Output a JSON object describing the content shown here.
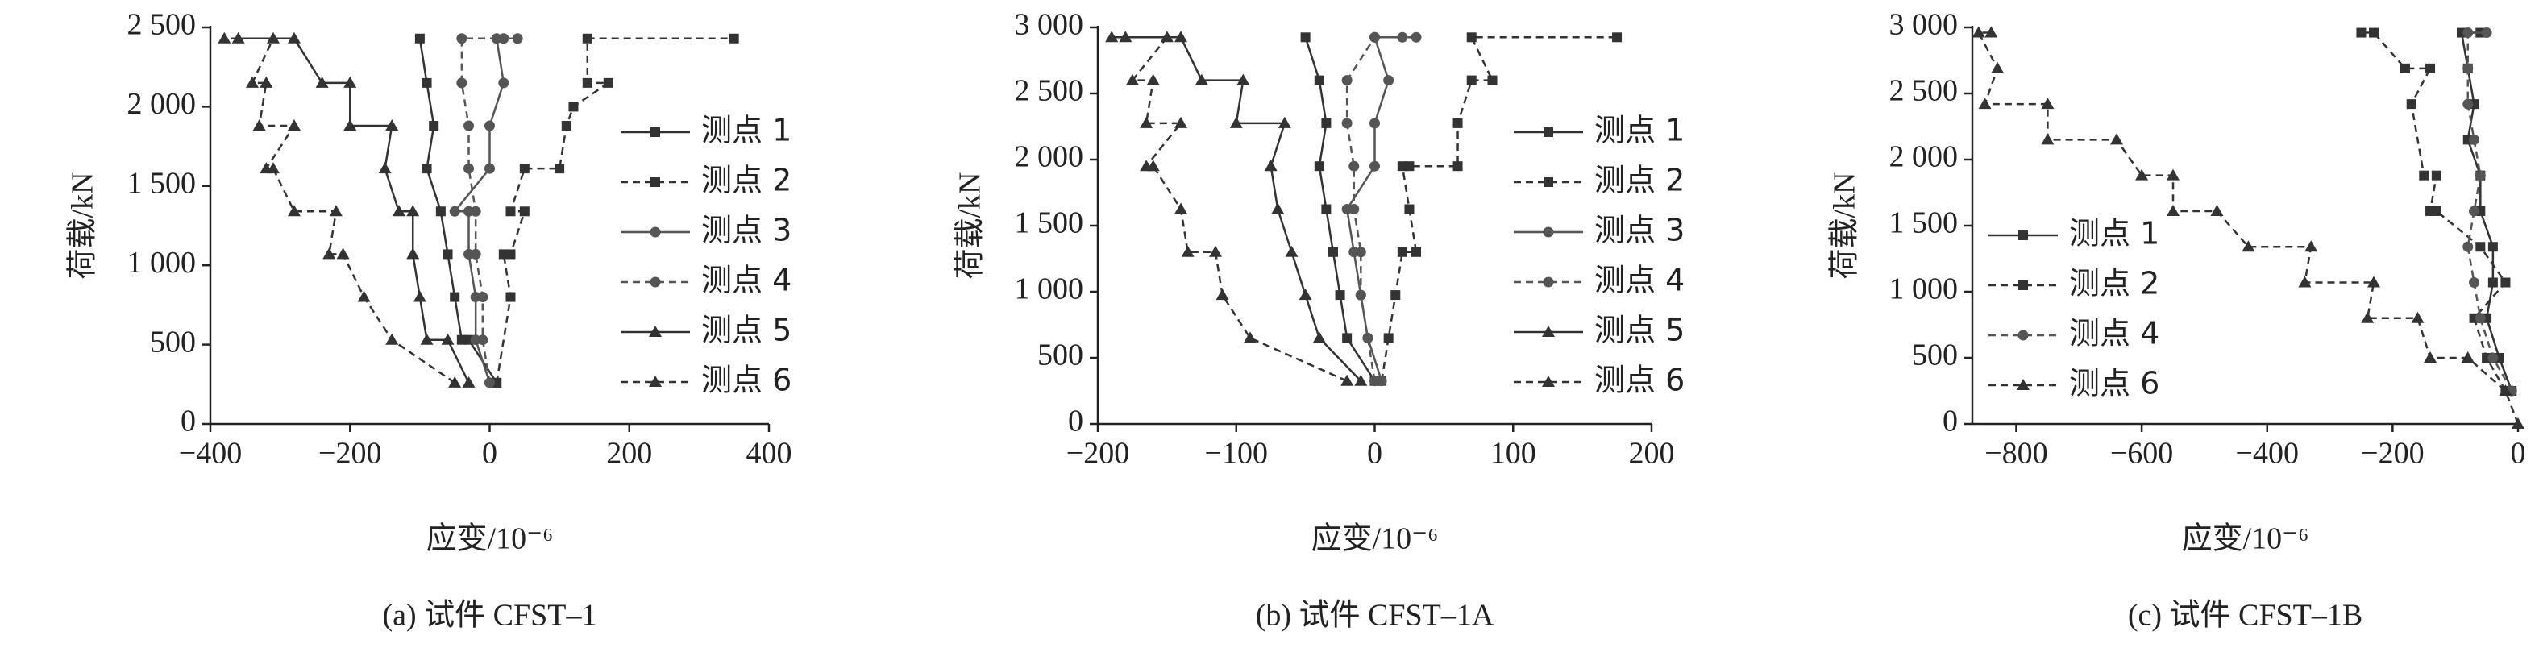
{
  "chart_data": [
    {
      "type": "line",
      "caption": "(a) 试件 CFST–1",
      "xlabel": "应变/10⁻⁶",
      "ylabel": "荷载/kN",
      "xlim": [
        -400,
        400
      ],
      "ylim": [
        0,
        2500
      ],
      "xticks": [
        {
          "value": -400,
          "label": "−400"
        },
        {
          "value": -200,
          "label": "−200"
        },
        0,
        200,
        400
      ],
      "yticks": [
        0,
        500,
        {
          "value": 1000,
          "label": "1 000"
        },
        {
          "value": 1500,
          "label": "1 500"
        },
        {
          "value": 2000,
          "label": "2 000"
        },
        {
          "value": 2500,
          "label": "2 500"
        }
      ],
      "series": [
        {
          "name": "测点 1",
          "color": "#333333",
          "dash": false,
          "marker": "square",
          "x": [
            10,
            -30,
            -40,
            -50,
            -60,
            -70,
            -90,
            -80,
            -90,
            -100
          ],
          "y": [
            260,
            530,
            530,
            800,
            1070,
            1340,
            1610,
            1880,
            2150,
            2430
          ]
        },
        {
          "name": "测点 2",
          "color": "#333333",
          "dash": true,
          "marker": "square",
          "x": [
            10,
            30,
            20,
            30,
            50,
            30,
            50,
            100,
            110,
            120,
            170,
            140,
            140,
            350
          ],
          "y": [
            260,
            800,
            1070,
            1070,
            1340,
            1340,
            1610,
            1610,
            1880,
            2000,
            2150,
            2150,
            2430,
            2430
          ]
        },
        {
          "name": "测点 3",
          "color": "#555555",
          "dash": false,
          "marker": "circle",
          "x": [
            0,
            -20,
            -20,
            -30,
            -30,
            -50,
            0,
            0,
            20,
            10,
            40
          ],
          "y": [
            260,
            530,
            800,
            1070,
            1340,
            1340,
            1610,
            1880,
            2150,
            2430,
            2430
          ]
        },
        {
          "name": "测点 4",
          "color": "#555555",
          "dash": true,
          "marker": "circle",
          "x": [
            0,
            -10,
            -10,
            -20,
            -20,
            -30,
            -30,
            -40,
            -40,
            20
          ],
          "y": [
            260,
            530,
            800,
            1070,
            1340,
            1610,
            1880,
            2150,
            2430,
            2430
          ]
        },
        {
          "name": "测点 5",
          "color": "#333333",
          "dash": false,
          "marker": "triangle",
          "x": [
            -30,
            -60,
            -90,
            -100,
            -110,
            -110,
            -130,
            -150,
            -140,
            -200,
            -200,
            -240,
            -280,
            -360
          ],
          "y": [
            260,
            530,
            530,
            800,
            1070,
            1340,
            1340,
            1610,
            1880,
            1880,
            2150,
            2150,
            2430,
            2430
          ]
        },
        {
          "name": "测点 6",
          "color": "#333333",
          "dash": true,
          "marker": "triangle",
          "x": [
            -50,
            -140,
            -180,
            -210,
            -230,
            -220,
            -280,
            -310,
            -320,
            -280,
            -330,
            -320,
            -340,
            -310,
            -380
          ],
          "y": [
            260,
            530,
            800,
            1070,
            1070,
            1340,
            1340,
            1610,
            1610,
            1880,
            1880,
            2150,
            2150,
            2430,
            2430
          ]
        }
      ]
    },
    {
      "type": "line",
      "caption": "(b) 试件 CFST–1A",
      "xlabel": "应变/10⁻⁶",
      "ylabel": "荷载/kN",
      "xlim": [
        -200,
        200
      ],
      "ylim": [
        0,
        3000
      ],
      "xticks": [
        {
          "value": -200,
          "label": "−200"
        },
        {
          "value": -100,
          "label": "−100"
        },
        0,
        100,
        200
      ],
      "yticks": [
        0,
        500,
        {
          "value": 1000,
          "label": "1 000"
        },
        {
          "value": 1500,
          "label": "1 500"
        },
        {
          "value": 2000,
          "label": "2 000"
        },
        {
          "value": 2500,
          "label": "2 500"
        },
        {
          "value": 3000,
          "label": "3 000"
        }
      ],
      "series": [
        {
          "name": "测点 1",
          "color": "#333333",
          "dash": false,
          "marker": "square",
          "x": [
            0,
            -20,
            -25,
            -30,
            -35,
            -40,
            -35,
            -40,
            -50
          ],
          "y": [
            325,
            650,
            975,
            1300,
            1625,
            1950,
            2275,
            2600,
            2925
          ]
        },
        {
          "name": "测点 2",
          "color": "#333333",
          "dash": true,
          "marker": "square",
          "x": [
            5,
            10,
            15,
            20,
            30,
            25,
            20,
            25,
            60,
            60,
            70,
            85,
            70,
            175
          ],
          "y": [
            325,
            650,
            975,
            1300,
            1300,
            1625,
            1950,
            1950,
            1950,
            2275,
            2600,
            2600,
            2925,
            2925
          ]
        },
        {
          "name": "测点 3",
          "color": "#555555",
          "dash": false,
          "marker": "circle",
          "x": [
            5,
            -5,
            -10,
            -15,
            -20,
            0,
            0,
            10,
            0,
            20
          ],
          "y": [
            325,
            650,
            975,
            1300,
            1625,
            1950,
            2275,
            2600,
            2925,
            2925
          ]
        },
        {
          "name": "测点 4",
          "color": "#555555",
          "dash": true,
          "marker": "circle",
          "x": [
            0,
            -5,
            -10,
            -10,
            -15,
            -15,
            -20,
            -20,
            0,
            30
          ],
          "y": [
            325,
            650,
            975,
            1300,
            1625,
            1950,
            2275,
            2600,
            2925,
            2925
          ]
        },
        {
          "name": "测点 5",
          "color": "#333333",
          "dash": false,
          "marker": "triangle",
          "x": [
            -10,
            -40,
            -50,
            -60,
            -70,
            -75,
            -65,
            -100,
            -95,
            -125,
            -140,
            -190
          ],
          "y": [
            325,
            650,
            975,
            1300,
            1625,
            1950,
            2275,
            2275,
            2600,
            2600,
            2925,
            2925
          ]
        },
        {
          "name": "测点 6",
          "color": "#333333",
          "dash": true,
          "marker": "triangle",
          "x": [
            -20,
            -90,
            -110,
            -115,
            -135,
            -140,
            -160,
            -165,
            -140,
            -165,
            -160,
            -175,
            -150,
            -180
          ],
          "y": [
            325,
            650,
            975,
            1300,
            1300,
            1625,
            1950,
            1950,
            2275,
            2275,
            2600,
            2600,
            2925,
            2925
          ]
        }
      ]
    },
    {
      "type": "line",
      "caption": "(c) 试件 CFST–1B",
      "xlabel": "应变/10⁻⁶",
      "ylabel": "荷载/kN",
      "xlim": [
        -870,
        0
      ],
      "ylim": [
        0,
        3000
      ],
      "xticks": [
        {
          "value": -800,
          "label": "−800"
        },
        {
          "value": -600,
          "label": "−600"
        },
        {
          "value": -400,
          "label": "−400"
        },
        {
          "value": -200,
          "label": "−200"
        },
        0
      ],
      "yticks": [
        0,
        500,
        {
          "value": 1000,
          "label": "1 000"
        },
        {
          "value": 1500,
          "label": "1 500"
        },
        {
          "value": 2000,
          "label": "2 000"
        },
        {
          "value": 2500,
          "label": "2 500"
        },
        {
          "value": 3000,
          "label": "3 000"
        }
      ],
      "series": [
        {
          "name": "测点 1",
          "color": "#333333",
          "dash": false,
          "marker": "square",
          "x": [
            -10,
            -30,
            -50,
            -40,
            -40,
            -60,
            -60,
            -80,
            -70,
            -80,
            -90,
            -60
          ],
          "y": [
            250,
            500,
            800,
            1070,
            1340,
            1610,
            1880,
            2150,
            2420,
            2690,
            2960,
            2960
          ]
        },
        {
          "name": "测点 2",
          "color": "#333333",
          "dash": true,
          "marker": "square",
          "x": [
            -20,
            -50,
            -70,
            -20,
            -60,
            -130,
            -140,
            -130,
            -150,
            -170,
            -140,
            -180,
            -230,
            -250
          ],
          "y": [
            250,
            500,
            800,
            1070,
            1340,
            1610,
            1610,
            1880,
            1880,
            2420,
            2690,
            2690,
            2960,
            2960
          ]
        },
        {
          "name": "测点 4",
          "color": "#555555",
          "dash": true,
          "marker": "circle",
          "x": [
            -10,
            -40,
            -60,
            -70,
            -80,
            -70,
            -60,
            -70,
            -80,
            -80,
            -80,
            -50
          ],
          "y": [
            250,
            500,
            800,
            1070,
            1340,
            1610,
            1880,
            2150,
            2420,
            2690,
            2960,
            2960
          ]
        },
        {
          "name": "测点 6",
          "color": "#333333",
          "dash": true,
          "marker": "triangle",
          "x": [
            0,
            -20,
            -80,
            -140,
            -160,
            -240,
            -230,
            -340,
            -330,
            -430,
            -480,
            -550,
            -550,
            -600,
            -640,
            -750,
            -750,
            -850,
            -830,
            -860,
            -840
          ],
          "y": [
            0,
            250,
            500,
            500,
            800,
            800,
            1070,
            1070,
            1340,
            1340,
            1610,
            1610,
            1880,
            1880,
            2150,
            2150,
            2420,
            2420,
            2690,
            2960,
            2960
          ]
        }
      ]
    }
  ]
}
